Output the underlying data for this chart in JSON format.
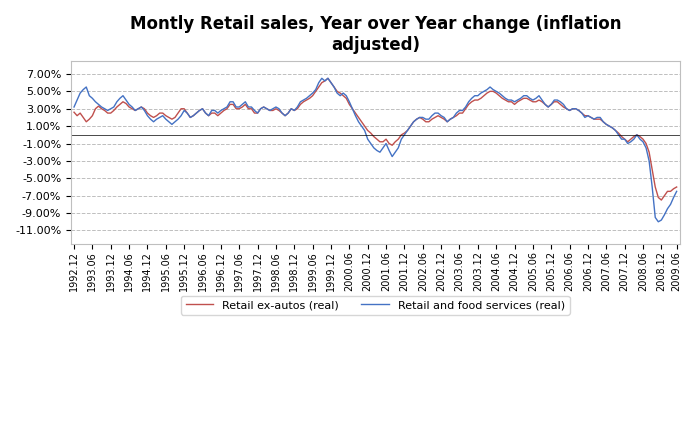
{
  "title": "Montly Retail sales, Year over Year change (inflation\nadjusted)",
  "ylim": [
    -0.125,
    0.085
  ],
  "yticks": [
    -0.11,
    -0.09,
    -0.07,
    -0.05,
    -0.03,
    -0.01,
    0.01,
    0.03,
    0.05,
    0.07
  ],
  "legend_labels": [
    "Retail ex-autos (real)",
    "Retail and food services (real)"
  ],
  "color_red": "#C0504D",
  "color_blue": "#4472C4",
  "background_color": "#FFFFFF",
  "grid_color": "#BFBFBF",
  "x_tick_labels": [
    "1992.12",
    "1993.06",
    "1993.12",
    "1994.06",
    "1994.12",
    "1995.06",
    "1995.12",
    "1996.06",
    "1996.12",
    "1997.06",
    "1997.12",
    "1998.06",
    "1998.12",
    "1999.06",
    "1999.12",
    "2000.06",
    "2000.12",
    "2001.06",
    "2001.12",
    "2002.06",
    "2002.12",
    "2003.06",
    "2003.12",
    "2004.06",
    "2004.12",
    "2005.06",
    "2005.12",
    "2006.06",
    "2006.12",
    "2007.06",
    "2007.12",
    "2008.06",
    "2008.12",
    "2009.06"
  ],
  "red_values": [
    0.026,
    0.022,
    0.025,
    0.02,
    0.015,
    0.018,
    0.022,
    0.03,
    0.033,
    0.03,
    0.028,
    0.025,
    0.025,
    0.028,
    0.032,
    0.035,
    0.038,
    0.036,
    0.032,
    0.03,
    0.028,
    0.03,
    0.032,
    0.03,
    0.025,
    0.022,
    0.02,
    0.022,
    0.025,
    0.025,
    0.022,
    0.02,
    0.018,
    0.02,
    0.025,
    0.03,
    0.03,
    0.025,
    0.02,
    0.022,
    0.025,
    0.028,
    0.03,
    0.025,
    0.022,
    0.025,
    0.025,
    0.022,
    0.025,
    0.028,
    0.03,
    0.035,
    0.035,
    0.03,
    0.03,
    0.032,
    0.035,
    0.03,
    0.03,
    0.025,
    0.025,
    0.03,
    0.032,
    0.03,
    0.028,
    0.028,
    0.03,
    0.028,
    0.025,
    0.022,
    0.025,
    0.03,
    0.028,
    0.03,
    0.035,
    0.038,
    0.04,
    0.042,
    0.045,
    0.05,
    0.055,
    0.06,
    0.062,
    0.065,
    0.06,
    0.055,
    0.05,
    0.048,
    0.045,
    0.042,
    0.035,
    0.03,
    0.025,
    0.02,
    0.015,
    0.01,
    0.005,
    0.002,
    -0.002,
    -0.005,
    -0.008,
    -0.008,
    -0.005,
    -0.01,
    -0.012,
    -0.008,
    -0.005,
    0.0,
    0.002,
    0.005,
    0.01,
    0.015,
    0.018,
    0.02,
    0.018,
    0.015,
    0.015,
    0.018,
    0.02,
    0.022,
    0.02,
    0.018,
    0.015,
    0.018,
    0.02,
    0.022,
    0.025,
    0.025,
    0.03,
    0.035,
    0.038,
    0.04,
    0.04,
    0.042,
    0.045,
    0.048,
    0.05,
    0.05,
    0.048,
    0.045,
    0.042,
    0.04,
    0.038,
    0.038,
    0.035,
    0.038,
    0.04,
    0.042,
    0.042,
    0.04,
    0.038,
    0.038,
    0.04,
    0.038,
    0.035,
    0.032,
    0.035,
    0.038,
    0.038,
    0.035,
    0.032,
    0.03,
    0.028,
    0.03,
    0.03,
    0.028,
    0.025,
    0.022,
    0.022,
    0.02,
    0.018,
    0.018,
    0.018,
    0.015,
    0.012,
    0.01,
    0.008,
    0.005,
    0.002,
    -0.002,
    -0.005,
    -0.008,
    -0.005,
    -0.002,
    0.0,
    -0.002,
    -0.005,
    -0.01,
    -0.02,
    -0.04,
    -0.06,
    -0.072,
    -0.075,
    -0.07,
    -0.065,
    -0.065,
    -0.062,
    -0.06
  ],
  "blue_values": [
    0.032,
    0.04,
    0.048,
    0.052,
    0.055,
    0.045,
    0.042,
    0.038,
    0.035,
    0.032,
    0.03,
    0.028,
    0.03,
    0.032,
    0.038,
    0.042,
    0.045,
    0.04,
    0.035,
    0.032,
    0.028,
    0.03,
    0.032,
    0.028,
    0.022,
    0.018,
    0.015,
    0.018,
    0.02,
    0.022,
    0.018,
    0.015,
    0.012,
    0.015,
    0.018,
    0.022,
    0.028,
    0.025,
    0.02,
    0.022,
    0.025,
    0.028,
    0.03,
    0.025,
    0.022,
    0.028,
    0.028,
    0.025,
    0.028,
    0.03,
    0.032,
    0.038,
    0.038,
    0.032,
    0.032,
    0.035,
    0.038,
    0.032,
    0.032,
    0.028,
    0.025,
    0.03,
    0.032,
    0.03,
    0.028,
    0.03,
    0.032,
    0.03,
    0.025,
    0.022,
    0.025,
    0.03,
    0.028,
    0.032,
    0.038,
    0.04,
    0.042,
    0.045,
    0.048,
    0.052,
    0.06,
    0.065,
    0.062,
    0.065,
    0.06,
    0.055,
    0.048,
    0.045,
    0.048,
    0.045,
    0.038,
    0.03,
    0.022,
    0.015,
    0.01,
    0.005,
    -0.005,
    -0.01,
    -0.015,
    -0.018,
    -0.02,
    -0.015,
    -0.01,
    -0.018,
    -0.025,
    -0.02,
    -0.015,
    -0.005,
    0.0,
    0.005,
    0.01,
    0.015,
    0.018,
    0.02,
    0.02,
    0.018,
    0.018,
    0.022,
    0.025,
    0.025,
    0.022,
    0.02,
    0.015,
    0.018,
    0.02,
    0.025,
    0.028,
    0.028,
    0.032,
    0.038,
    0.042,
    0.045,
    0.045,
    0.048,
    0.05,
    0.052,
    0.055,
    0.052,
    0.05,
    0.048,
    0.045,
    0.042,
    0.04,
    0.04,
    0.038,
    0.04,
    0.042,
    0.045,
    0.045,
    0.042,
    0.04,
    0.042,
    0.045,
    0.04,
    0.035,
    0.032,
    0.035,
    0.04,
    0.04,
    0.038,
    0.035,
    0.03,
    0.028,
    0.03,
    0.03,
    0.028,
    0.025,
    0.02,
    0.022,
    0.02,
    0.018,
    0.02,
    0.02,
    0.015,
    0.012,
    0.01,
    0.008,
    0.005,
    0.0,
    -0.005,
    -0.005,
    -0.01,
    -0.008,
    -0.005,
    0.0,
    -0.005,
    -0.008,
    -0.015,
    -0.03,
    -0.06,
    -0.095,
    -0.1,
    -0.098,
    -0.092,
    -0.085,
    -0.08,
    -0.072,
    -0.065
  ]
}
